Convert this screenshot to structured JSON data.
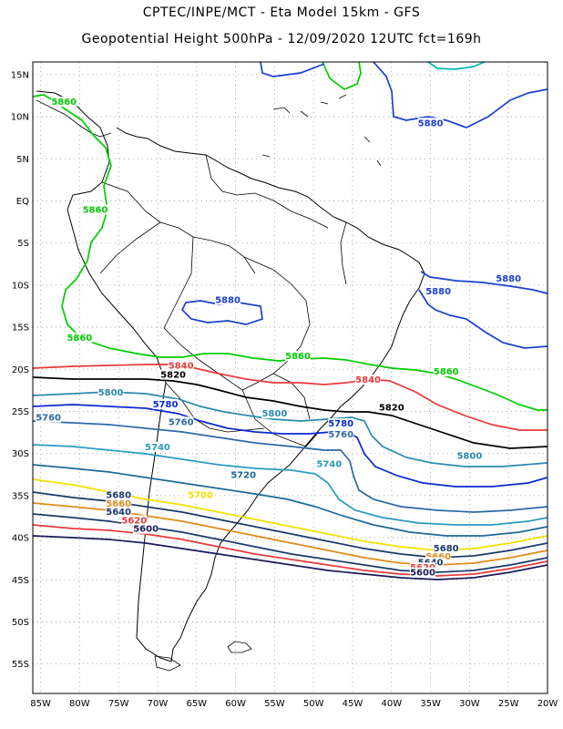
{
  "header": {
    "line1": "CPTEC/INPE/MCT -  Eta Model 15km - GFS",
    "line2": "Geopotential Height 500hPa - 12/09/2020 12UTC fct=169h"
  },
  "axes": {
    "lat_labels": [
      "15N",
      "10N",
      "5N",
      "EQ",
      "5S",
      "10S",
      "15S",
      "20S",
      "25S",
      "30S",
      "35S",
      "40S",
      "45S",
      "50S",
      "55S"
    ],
    "lon_labels": [
      "85W",
      "80W",
      "75W",
      "70W",
      "65W",
      "60W",
      "55W",
      "50W",
      "45W",
      "40W",
      "35W",
      "30W",
      "25W",
      "20W"
    ],
    "lat_range": [
      -58.5,
      16.5
    ],
    "lon_range": [
      -86,
      -20
    ],
    "grid": "dotted"
  },
  "colors": {
    "c5860": "#00cc00",
    "c5880": "#1a3fd0",
    "c5840": "#e83a3a",
    "c5820": "#000000",
    "c5800": "#2a8ab0",
    "c5780": "#0a2ad0",
    "c5760": "#2a6aa8",
    "c5740": "#2a9ac0",
    "c5720": "#1a6a9a",
    "c5700": "#f0e000",
    "c5680": "#e08a1a",
    "c5660": "#1a3a6a",
    "c5620": "#e83a3a",
    "c5600": "#1a1a5a",
    "cyan": "#00bbbb",
    "land": "#000000"
  },
  "contour_labels": [
    {
      "text": "5880",
      "lon": -35,
      "lat": 9,
      "color": "#1a3fd0"
    },
    {
      "text": "5860",
      "lon": -82,
      "lat": 11.5,
      "color": "#00cc00"
    },
    {
      "text": "5860",
      "lon": -78,
      "lat": -1.3,
      "color": "#00cc00"
    },
    {
      "text": "5880",
      "lon": -25,
      "lat": -9.5,
      "color": "#1a3fd0"
    },
    {
      "text": "5880",
      "lon": -34,
      "lat": -11,
      "color": "#1a3fd0"
    },
    {
      "text": "5880",
      "lon": -61,
      "lat": -12,
      "color": "#1a3fd0"
    },
    {
      "text": "5860",
      "lon": -80,
      "lat": -16.5,
      "color": "#00cc00"
    },
    {
      "text": "5860",
      "lon": -52,
      "lat": -18.7,
      "color": "#00cc00"
    },
    {
      "text": "5860",
      "lon": -33,
      "lat": -20.5,
      "color": "#00cc00"
    },
    {
      "text": "5840",
      "lon": -67,
      "lat": -19.8,
      "color": "#e83a3a"
    },
    {
      "text": "5820",
      "lon": -68,
      "lat": -20.9,
      "color": "#000000"
    },
    {
      "text": "5840",
      "lon": -43,
      "lat": -21.5,
      "color": "#e83a3a"
    },
    {
      "text": "5800",
      "lon": -76,
      "lat": -23,
      "color": "#2a8ab0"
    },
    {
      "text": "5820",
      "lon": -40,
      "lat": -24.8,
      "color": "#000000"
    },
    {
      "text": "5780",
      "lon": -69,
      "lat": -24.4,
      "color": "#0a2ad0"
    },
    {
      "text": "5760",
      "lon": -84,
      "lat": -26,
      "color": "#2a6aa8"
    },
    {
      "text": "5800",
      "lon": -55,
      "lat": -25.5,
      "color": "#2a8ab0"
    },
    {
      "text": "5760",
      "lon": -67,
      "lat": -26.5,
      "color": "#2a6aa8"
    },
    {
      "text": "5780",
      "lon": -46.5,
      "lat": -26.7,
      "color": "#0a2ad0"
    },
    {
      "text": "5760",
      "lon": -46.5,
      "lat": -28,
      "color": "#2a6aa8"
    },
    {
      "text": "5740",
      "lon": -70,
      "lat": -29.5,
      "color": "#2a9ac0"
    },
    {
      "text": "5800",
      "lon": -30,
      "lat": -30.5,
      "color": "#2a8ab0"
    },
    {
      "text": "5740",
      "lon": -48,
      "lat": -31.5,
      "color": "#2a9ac0"
    },
    {
      "text": "5720",
      "lon": -59,
      "lat": -32.8,
      "color": "#1a6a9a"
    },
    {
      "text": "5680",
      "lon": -75,
      "lat": -35.2,
      "color": "#1a3a6a"
    },
    {
      "text": "5700",
      "lon": -64.5,
      "lat": -35.2,
      "color": "#f0e000"
    },
    {
      "text": "5660",
      "lon": -75,
      "lat": -36.2,
      "color": "#e08a1a"
    },
    {
      "text": "5640",
      "lon": -75,
      "lat": -37.2,
      "color": "#1a3a6a"
    },
    {
      "text": "5620",
      "lon": -73,
      "lat": -38.2,
      "color": "#e83a3a"
    },
    {
      "text": "5600",
      "lon": -71.5,
      "lat": -39.2,
      "color": "#1a1a5a"
    },
    {
      "text": "5680",
      "lon": -33,
      "lat": -41.5,
      "color": "#1a3a6a"
    },
    {
      "text": "5660",
      "lon": -34,
      "lat": -42.5,
      "color": "#e08a1a"
    },
    {
      "text": "5640",
      "lon": -35,
      "lat": -43.2,
      "color": "#1a3a6a"
    },
    {
      "text": "5620",
      "lon": -36,
      "lat": -43.8,
      "color": "#e83a3a"
    },
    {
      "text": "5600",
      "lon": -36,
      "lat": -44.4,
      "color": "#1a1a5a"
    }
  ]
}
